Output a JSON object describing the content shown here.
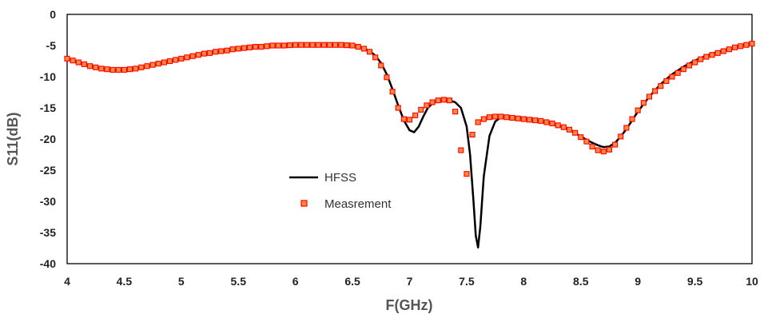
{
  "chart_data": {
    "type": "line",
    "xlabel": "F(GHz)",
    "ylabel": "S11(dB)",
    "xlim": [
      4,
      10
    ],
    "ylim": [
      -40,
      0
    ],
    "xticks": [
      "4",
      "4.5",
      "5",
      "5.5",
      "6",
      "6.5",
      "7",
      "7.5",
      "8",
      "8.5",
      "9",
      "9.5",
      "10"
    ],
    "yticks": [
      "0",
      "-5",
      "-10",
      "-15",
      "-20",
      "-25",
      "-30",
      "-35",
      "-40"
    ],
    "grid": false,
    "legend_position": "center-left",
    "series": [
      {
        "name": "HFSS",
        "style": "line",
        "color": "#000000",
        "x": [
          4.0,
          4.1,
          4.2,
          4.3,
          4.4,
          4.5,
          4.6,
          4.7,
          4.8,
          4.9,
          5.0,
          5.1,
          5.2,
          5.3,
          5.4,
          5.5,
          5.6,
          5.7,
          5.8,
          5.9,
          6.0,
          6.1,
          6.2,
          6.3,
          6.4,
          6.5,
          6.55,
          6.6,
          6.65,
          6.7,
          6.75,
          6.8,
          6.85,
          6.9,
          6.95,
          7.0,
          7.04,
          7.08,
          7.12,
          7.16,
          7.2,
          7.25,
          7.3,
          7.35,
          7.4,
          7.45,
          7.5,
          7.53,
          7.56,
          7.58,
          7.6,
          7.62,
          7.65,
          7.7,
          7.75,
          7.8,
          7.9,
          8.0,
          8.1,
          8.2,
          8.3,
          8.4,
          8.5,
          8.6,
          8.65,
          8.7,
          8.75,
          8.8,
          8.85,
          8.9,
          8.95,
          9.0,
          9.1,
          9.2,
          9.3,
          9.4,
          9.5,
          9.6,
          9.7,
          9.8,
          9.9,
          10.0
        ],
        "y": [
          -7.2,
          -7.8,
          -8.3,
          -8.7,
          -8.9,
          -8.9,
          -8.7,
          -8.4,
          -8.0,
          -7.6,
          -7.2,
          -6.8,
          -6.4,
          -6.1,
          -5.8,
          -5.6,
          -5.4,
          -5.2,
          -5.1,
          -5.0,
          -4.95,
          -4.9,
          -4.9,
          -4.9,
          -4.9,
          -4.95,
          -5.1,
          -5.4,
          -5.9,
          -6.6,
          -7.8,
          -9.6,
          -12.0,
          -14.6,
          -17.0,
          -18.6,
          -18.9,
          -18.0,
          -16.4,
          -15.0,
          -14.3,
          -13.9,
          -13.8,
          -13.8,
          -14.1,
          -15.0,
          -18.0,
          -22.5,
          -30.0,
          -35.5,
          -37.4,
          -34.0,
          -26.0,
          -19.5,
          -17.2,
          -16.5,
          -16.5,
          -16.7,
          -17.0,
          -17.3,
          -17.8,
          -18.5,
          -19.6,
          -20.6,
          -21.0,
          -21.3,
          -21.2,
          -20.6,
          -19.6,
          -18.4,
          -17.0,
          -15.6,
          -13.2,
          -11.2,
          -9.6,
          -8.4,
          -7.4,
          -6.6,
          -6.0,
          -5.5,
          -5.0,
          -4.6
        ]
      },
      {
        "name": "Measrement",
        "style": "markers",
        "color": "#ff0000",
        "marker_fill": "#ff8a3d",
        "x": [
          4.0,
          4.05,
          4.1,
          4.15,
          4.2,
          4.25,
          4.3,
          4.35,
          4.4,
          4.45,
          4.5,
          4.55,
          4.6,
          4.65,
          4.7,
          4.75,
          4.8,
          4.85,
          4.9,
          4.95,
          5.0,
          5.05,
          5.1,
          5.15,
          5.2,
          5.25,
          5.3,
          5.35,
          5.4,
          5.45,
          5.5,
          5.55,
          5.6,
          5.65,
          5.7,
          5.75,
          5.8,
          5.85,
          5.9,
          5.95,
          6.0,
          6.05,
          6.1,
          6.15,
          6.2,
          6.25,
          6.3,
          6.35,
          6.4,
          6.45,
          6.5,
          6.55,
          6.6,
          6.65,
          6.7,
          6.75,
          6.8,
          6.85,
          6.9,
          6.95,
          7.0,
          7.05,
          7.1,
          7.15,
          7.2,
          7.25,
          7.3,
          7.35,
          7.4,
          7.45,
          7.5,
          7.55,
          7.6,
          7.65,
          7.7,
          7.75,
          7.8,
          7.85,
          7.9,
          7.95,
          8.0,
          8.05,
          8.1,
          8.15,
          8.2,
          8.25,
          8.3,
          8.35,
          8.4,
          8.45,
          8.5,
          8.55,
          8.6,
          8.65,
          8.7,
          8.75,
          8.8,
          8.85,
          8.9,
          8.95,
          9.0,
          9.05,
          9.1,
          9.15,
          9.2,
          9.25,
          9.3,
          9.35,
          9.4,
          9.45,
          9.5,
          9.55,
          9.6,
          9.65,
          9.7,
          9.75,
          9.8,
          9.85,
          9.9,
          9.95,
          10.0
        ],
        "y": [
          -7.1,
          -7.4,
          -7.7,
          -8.0,
          -8.3,
          -8.5,
          -8.7,
          -8.8,
          -8.9,
          -8.9,
          -8.9,
          -8.8,
          -8.7,
          -8.5,
          -8.3,
          -8.1,
          -7.9,
          -7.7,
          -7.5,
          -7.3,
          -7.1,
          -6.9,
          -6.7,
          -6.5,
          -6.3,
          -6.2,
          -6.0,
          -5.9,
          -5.8,
          -5.6,
          -5.5,
          -5.4,
          -5.3,
          -5.2,
          -5.2,
          -5.1,
          -5.0,
          -5.0,
          -5.0,
          -4.95,
          -4.9,
          -4.9,
          -4.9,
          -4.9,
          -4.9,
          -4.9,
          -4.9,
          -4.9,
          -4.9,
          -4.95,
          -5.0,
          -5.2,
          -5.5,
          -6.0,
          -6.9,
          -8.2,
          -10.1,
          -12.4,
          -15.0,
          -16.8,
          -16.9,
          -16.2,
          -15.3,
          -14.6,
          -14.1,
          -13.8,
          -13.7,
          -13.8,
          -15.6,
          -21.8,
          -25.6,
          -19.3,
          -17.3,
          -16.8,
          -16.5,
          -16.4,
          -16.4,
          -16.5,
          -16.6,
          -16.7,
          -16.8,
          -16.9,
          -17.0,
          -17.1,
          -17.3,
          -17.5,
          -17.8,
          -18.1,
          -18.5,
          -19.0,
          -19.7,
          -20.4,
          -21.2,
          -21.8,
          -22.0,
          -21.7,
          -20.9,
          -19.6,
          -18.2,
          -16.8,
          -15.4,
          -14.2,
          -13.2,
          -12.3,
          -11.5,
          -10.7,
          -10.0,
          -9.4,
          -8.8,
          -8.2,
          -7.7,
          -7.2,
          -6.8,
          -6.5,
          -6.2,
          -5.9,
          -5.6,
          -5.3,
          -5.1,
          -4.9,
          -4.7
        ]
      }
    ]
  }
}
